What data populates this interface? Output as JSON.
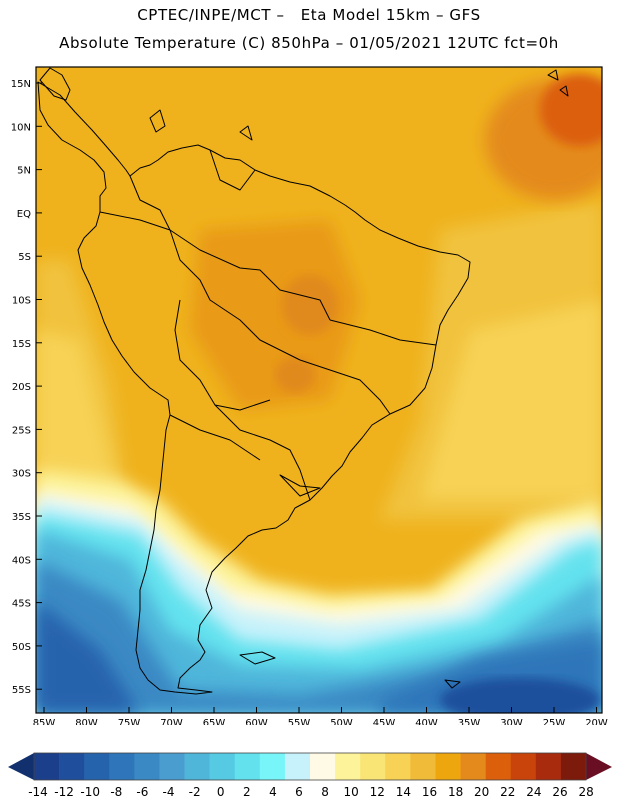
{
  "header": {
    "line1": "CPTEC/INPE/MCT –   Eta Model 15km – GFS",
    "line2": "Absolute Temperature (C) 850hPa – 01/05/2021 12UTC fct=0h"
  },
  "map": {
    "lat_labels": [
      "15N",
      "10N",
      "5N",
      "EQ",
      "5S",
      "10S",
      "15S",
      "20S",
      "25S",
      "30S",
      "35S",
      "40S",
      "45S",
      "50S",
      "55S"
    ],
    "lon_labels": [
      "85W",
      "80W",
      "75W",
      "70W",
      "65W",
      "60W",
      "55W",
      "50W",
      "45W",
      "40W",
      "35W",
      "30W",
      "25W",
      "20W"
    ],
    "land_outline_color": "#000000"
  },
  "colorbar": {
    "labels": [
      "-14",
      "-12",
      "-10",
      "-8",
      "-6",
      "-4",
      "-2",
      "0",
      "2",
      "4",
      "6",
      "8",
      "10",
      "12",
      "14",
      "16",
      "18",
      "20",
      "22",
      "24",
      "26",
      "28"
    ],
    "colors": [
      "#1c3f8c",
      "#1f4f9c",
      "#2663ad",
      "#2e76b9",
      "#3a89c4",
      "#4a9dcf",
      "#4fb6da",
      "#56c9e3",
      "#63e2ee",
      "#78f5f8",
      "#c8f2fb",
      "#fffae6",
      "#fdf39a",
      "#f9e476",
      "#f7d255",
      "#f1bb3a",
      "#eea60f",
      "#e48a1c",
      "#dc5f0c",
      "#c9440a",
      "#a82b0e",
      "#7c1a0c"
    ],
    "low_arrow_color": "#13306e",
    "high_arrow_color": "#6a0f23"
  }
}
